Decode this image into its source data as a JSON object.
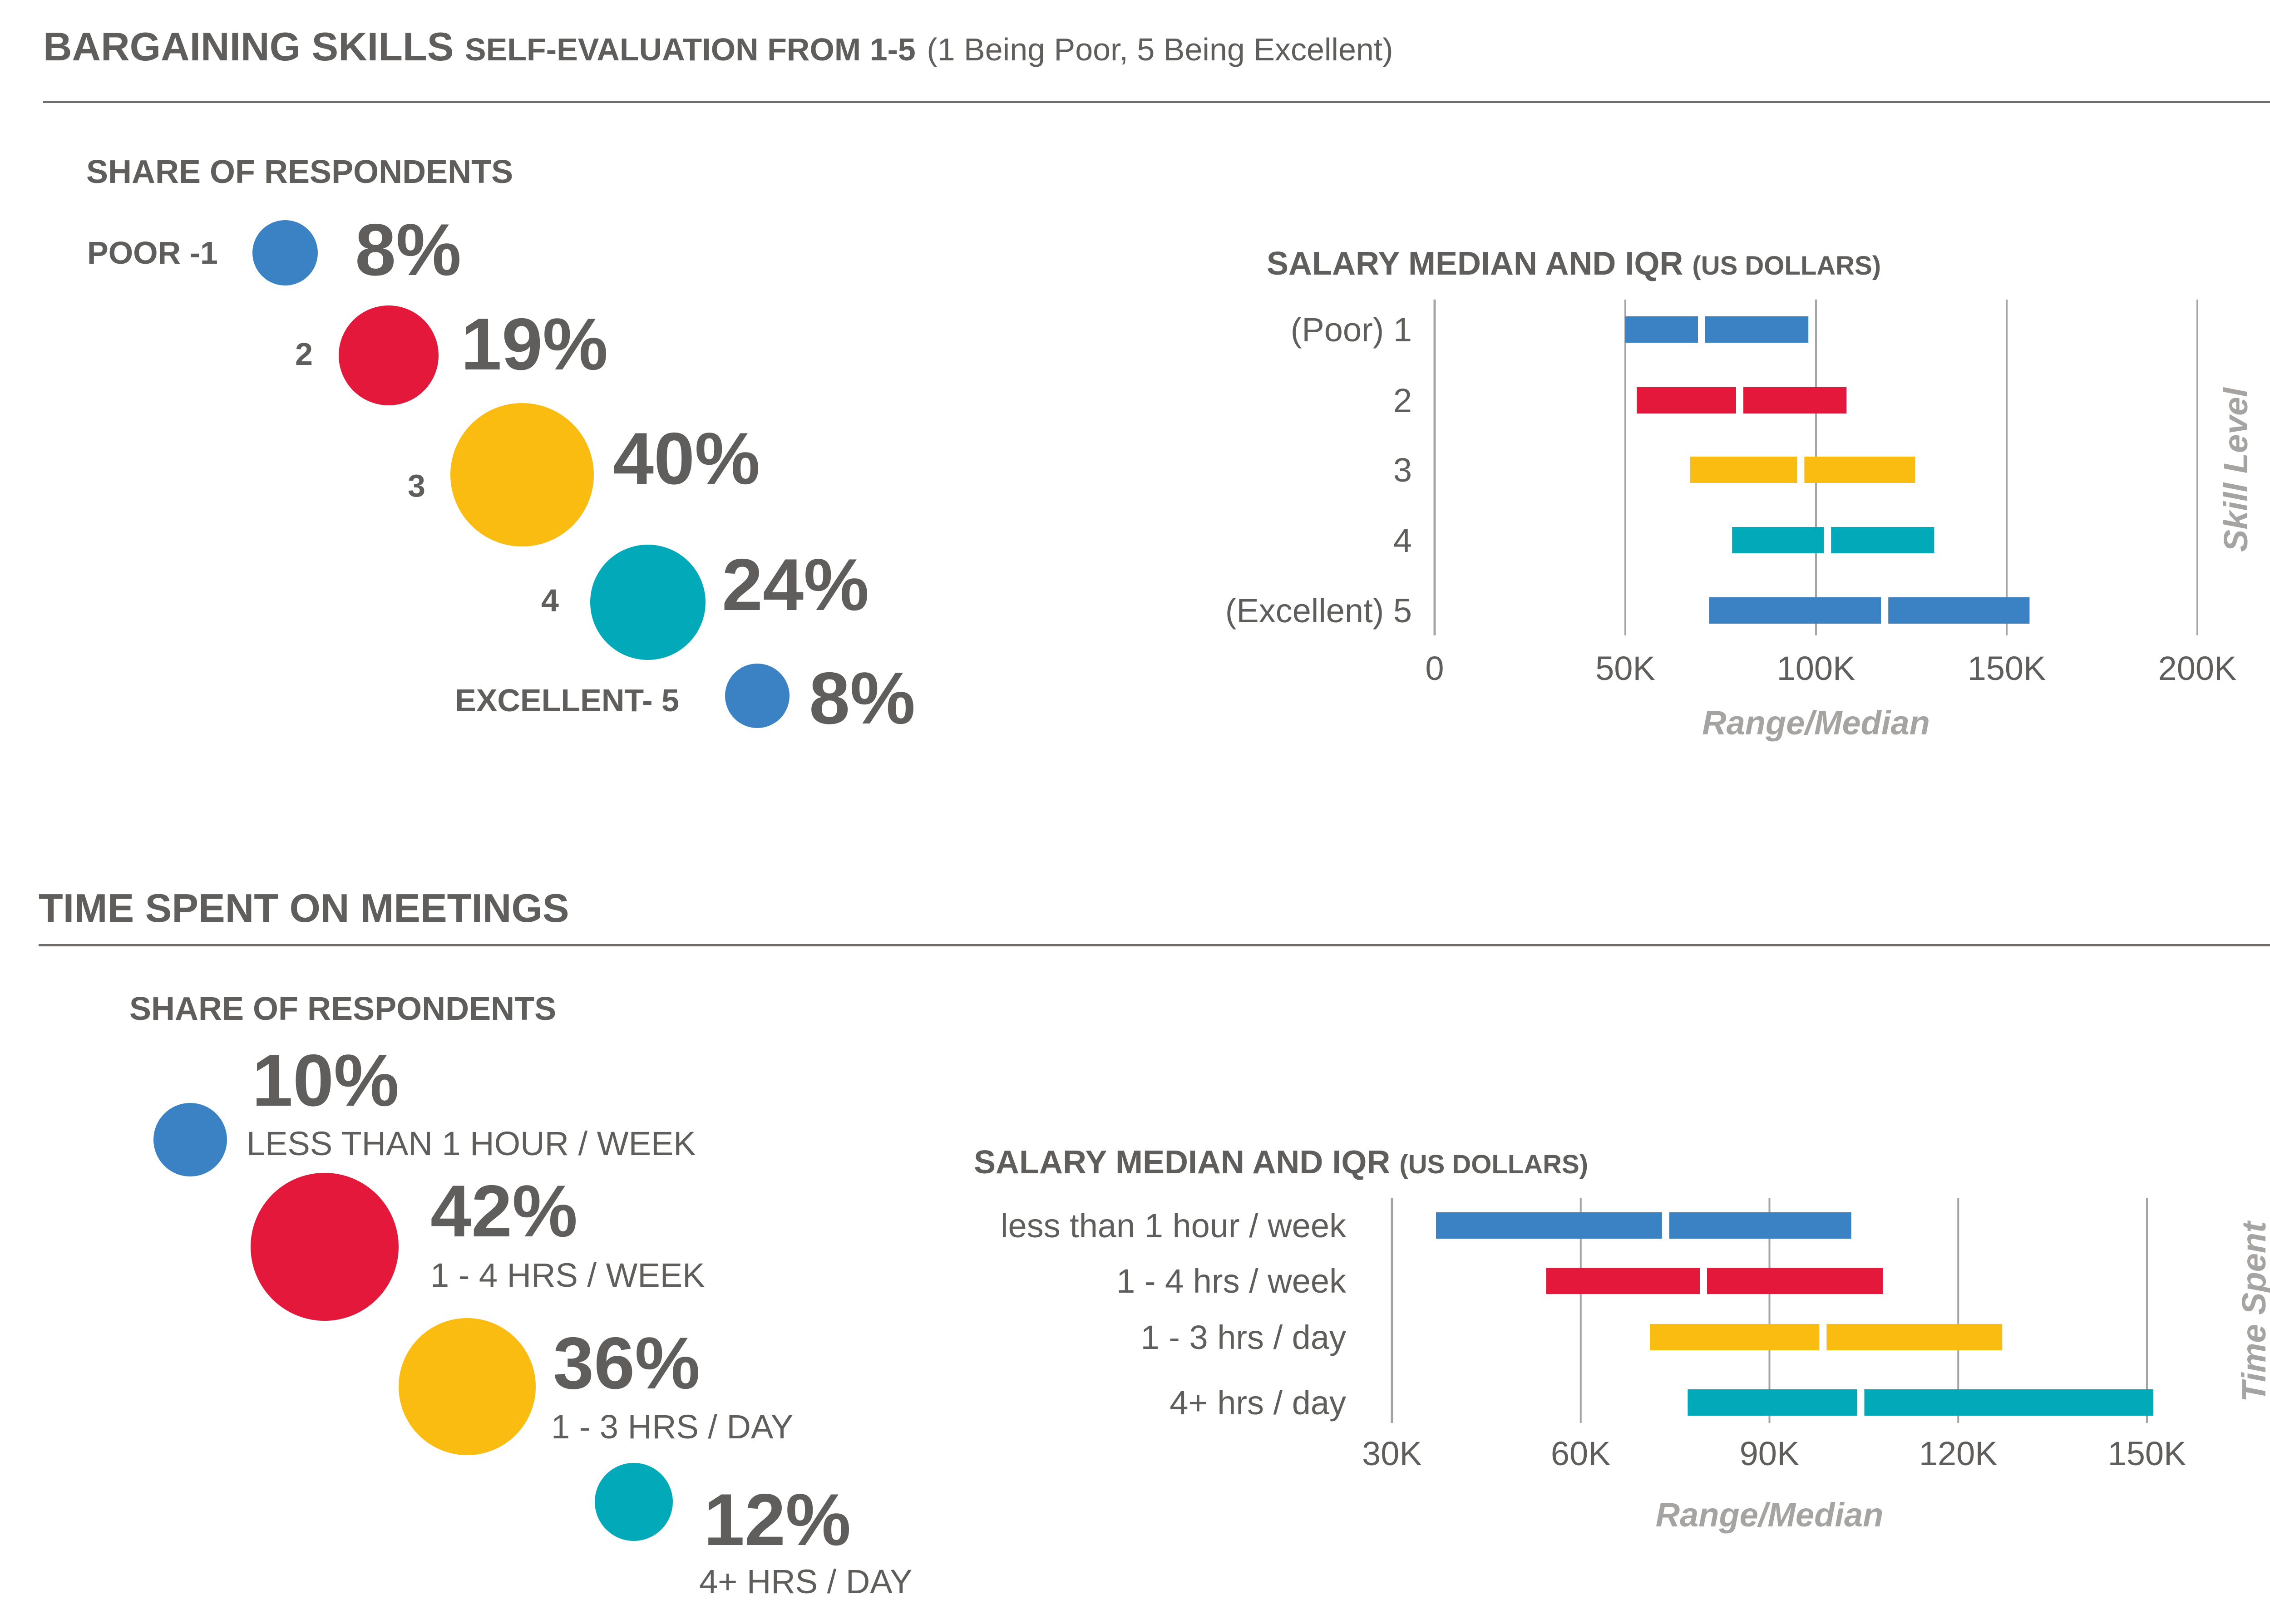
{
  "bargaining": {
    "title_bold": "BARGAINING SKILLS",
    "title_sub": "SELF-EVALUATION FROM 1-5",
    "title_note": "(1 Being Poor, 5 Being Excellent)",
    "share_label": "SHARE OF RESPONDENTS",
    "shares": [
      {
        "level": "POOR -1",
        "pct": "8%",
        "color": "#3a82c4"
      },
      {
        "level": "2",
        "pct": "19%",
        "color": "#e3183a"
      },
      {
        "level": "3",
        "pct": "40%",
        "color": "#fbbc11"
      },
      {
        "level": "4",
        "pct": "24%",
        "color": "#02aab9"
      },
      {
        "level": "EXCELLENT- 5",
        "pct": "8%",
        "color": "#3a82c4"
      }
    ],
    "chart_title": "SALARY MEDIAN AND IQR",
    "chart_title_unit": "(US DOLLARS)"
  },
  "meetings": {
    "title": "TIME SPENT ON MEETINGS",
    "share_label": "SHARE OF RESPONDENTS",
    "shares": [
      {
        "pct": "10%",
        "caption": "LESS THAN 1 HOUR / WEEK",
        "color": "#3a82c4"
      },
      {
        "pct": "42%",
        "caption": "1 - 4 HRS / WEEK",
        "color": "#e3183a"
      },
      {
        "pct": "36%",
        "caption": "1 - 3 HRS / DAY",
        "color": "#fbbc11"
      },
      {
        "pct": "12%",
        "caption": "4+ HRS / DAY",
        "color": "#02aab9"
      }
    ],
    "chart_title": "SALARY MEDIAN AND IQR",
    "chart_title_unit": "(US DOLLARS)"
  },
  "chart_data": [
    {
      "type": "range-bar",
      "title": "SALARY MEDIAN AND IQR (US DOLLARS)",
      "xlabel": "Range/Median",
      "ylabel": "Skill Level",
      "xlim": [
        0,
        200000
      ],
      "xticks": [
        0,
        50000,
        100000,
        150000,
        200000
      ],
      "xtick_labels": [
        "0",
        "50K",
        "100K",
        "150K",
        "200K"
      ],
      "grid": true,
      "categories": [
        "(Poor) 1",
        "2",
        "3",
        "4",
        "(Excellent) 5"
      ],
      "q1": [
        50000,
        53000,
        67000,
        78000,
        72000
      ],
      "median": [
        70000,
        80000,
        96000,
        103000,
        118000
      ],
      "q3": [
        98000,
        108000,
        126000,
        131000,
        156000
      ],
      "colors": [
        "#3a82c4",
        "#e3183a",
        "#fbbc11",
        "#02aab9",
        "#3a82c4"
      ]
    },
    {
      "type": "range-bar",
      "title": "SALARY MEDIAN AND IQR (US DOLLARS)",
      "xlabel": "Range/Median",
      "ylabel": "Time Spent",
      "xlim": [
        30000,
        150000
      ],
      "xticks": [
        30000,
        60000,
        90000,
        120000,
        150000
      ],
      "xtick_labels": [
        "30K",
        "60K",
        "90K",
        "120K",
        "150K"
      ],
      "grid": true,
      "categories": [
        "less than 1 hour / week",
        "1 - 4 hrs / week",
        "1 - 3 hrs / day",
        "4+ hrs / day"
      ],
      "q1": [
        37000,
        54500,
        71000,
        77000
      ],
      "median": [
        73500,
        79500,
        98500,
        104500
      ],
      "q3": [
        103000,
        108000,
        127000,
        151000
      ],
      "colors": [
        "#3a82c4",
        "#e3183a",
        "#fbbc11",
        "#02aab9"
      ]
    }
  ]
}
